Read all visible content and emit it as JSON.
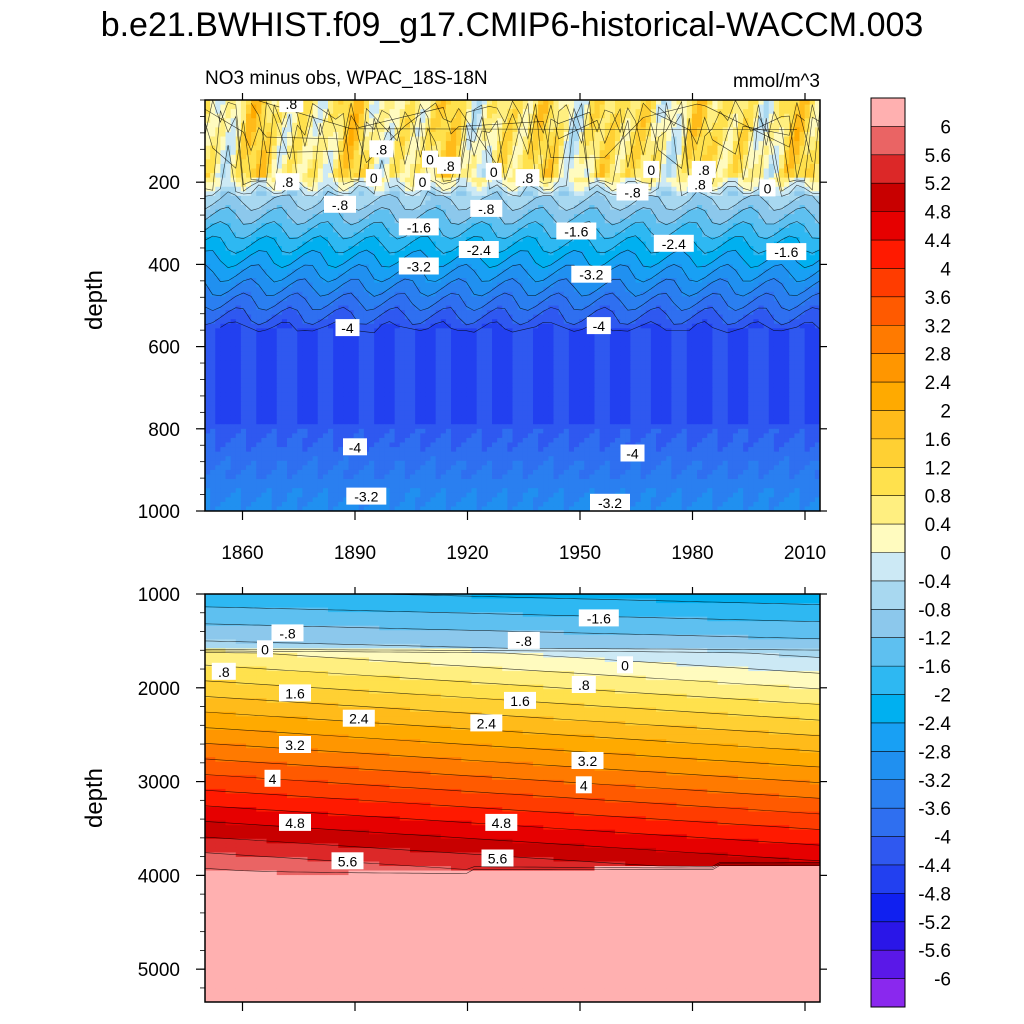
{
  "title": "b.e21.BWHIST.f09_g17.CMIP6-historical-WACCM.003",
  "chart_data": [
    {
      "type": "heatmap",
      "panel": "upper",
      "subtitle_left": "NO3 minus obs, WPAC_18S-18N",
      "subtitle_right": "mmol/m^3",
      "xlabel": "",
      "ylabel": "depth",
      "xlim": [
        1850,
        2014
      ],
      "ylim": [
        1000,
        0
      ],
      "x_ticks": [
        1860,
        1890,
        1920,
        1950,
        1980,
        2010
      ],
      "x_tick_labels": [
        "1860",
        "1890",
        "1920",
        "1950",
        "1980",
        "2010"
      ],
      "y_ticks": [
        200,
        400,
        600,
        800,
        1000
      ],
      "y_tick_labels": [
        "200",
        "400",
        "600",
        "800",
        "1000"
      ],
      "contour_labels": [
        {
          "text": ".8",
          "x": 1873,
          "y": 10
        },
        {
          "text": ".8",
          "x": 1897,
          "y": 120
        },
        {
          "text": ".8",
          "x": 1872,
          "y": 200
        },
        {
          "text": "0",
          "x": 1895,
          "y": 190
        },
        {
          "text": "0",
          "x": 1908,
          "y": 200
        },
        {
          "text": "0",
          "x": 1910,
          "y": 145
        },
        {
          "text": ".8",
          "x": 1915,
          "y": 160
        },
        {
          "text": "0",
          "x": 1927,
          "y": 175
        },
        {
          "text": ".8",
          "x": 1936,
          "y": 190
        },
        {
          "text": "-.8",
          "x": 1925,
          "y": 265
        },
        {
          "text": "-.8",
          "x": 1964,
          "y": 225
        },
        {
          "text": "0",
          "x": 1969,
          "y": 170
        },
        {
          "text": ".8",
          "x": 1983,
          "y": 170
        },
        {
          "text": ".8",
          "x": 1982,
          "y": 205
        },
        {
          "text": "0",
          "x": 2000,
          "y": 215
        },
        {
          "text": "-.8",
          "x": 1886,
          "y": 255
        },
        {
          "text": "-1.6",
          "x": 1907,
          "y": 310
        },
        {
          "text": "-1.6",
          "x": 1949,
          "y": 320
        },
        {
          "text": "-1.6",
          "x": 2005,
          "y": 370
        },
        {
          "text": "-2.4",
          "x": 1923,
          "y": 365
        },
        {
          "text": "-2.4",
          "x": 1975,
          "y": 350
        },
        {
          "text": "-3.2",
          "x": 1907,
          "y": 405
        },
        {
          "text": "-3.2",
          "x": 1953,
          "y": 425
        },
        {
          "text": "-4",
          "x": 1888,
          "y": 555
        },
        {
          "text": "-4",
          "x": 1955,
          "y": 550
        },
        {
          "text": "-4",
          "x": 1890,
          "y": 845
        },
        {
          "text": "-4",
          "x": 1964,
          "y": 860
        },
        {
          "text": "-3.2",
          "x": 1893,
          "y": 965
        },
        {
          "text": "-3.2",
          "x": 1958,
          "y": 980
        }
      ]
    },
    {
      "type": "heatmap",
      "panel": "lower",
      "xlabel": "",
      "ylabel": "depth",
      "xlim": [
        1850,
        2014
      ],
      "ylim": [
        5350,
        1000
      ],
      "x_ticks": [
        1860,
        1890,
        1920,
        1950,
        1980,
        2010
      ],
      "y_ticks": [
        1000,
        2000,
        3000,
        4000,
        5000
      ],
      "y_tick_labels": [
        "1000",
        "2000",
        "3000",
        "4000",
        "5000"
      ],
      "contour_labels": [
        {
          "text": "-.8",
          "x": 1872,
          "y": 1420
        },
        {
          "text": "0",
          "x": 1866,
          "y": 1590
        },
        {
          "text": ".8",
          "x": 1855,
          "y": 1830
        },
        {
          "text": "-.8",
          "x": 1935,
          "y": 1500
        },
        {
          "text": "-1.6",
          "x": 1955,
          "y": 1260
        },
        {
          "text": "0",
          "x": 1962,
          "y": 1760
        },
        {
          "text": ".8",
          "x": 1951,
          "y": 1970
        },
        {
          "text": "1.6",
          "x": 1874,
          "y": 2060
        },
        {
          "text": "1.6",
          "x": 1934,
          "y": 2140
        },
        {
          "text": "2.4",
          "x": 1891,
          "y": 2330
        },
        {
          "text": "2.4",
          "x": 1925,
          "y": 2380
        },
        {
          "text": "3.2",
          "x": 1874,
          "y": 2610
        },
        {
          "text": "3.2",
          "x": 1952,
          "y": 2780
        },
        {
          "text": "4",
          "x": 1868,
          "y": 2970
        },
        {
          "text": "4",
          "x": 1951,
          "y": 3040
        },
        {
          "text": "4.8",
          "x": 1874,
          "y": 3440
        },
        {
          "text": "4.8",
          "x": 1929,
          "y": 3440
        },
        {
          "text": "5.6",
          "x": 1888,
          "y": 3850
        },
        {
          "text": "5.6",
          "x": 1928,
          "y": 3820
        }
      ]
    }
  ],
  "colorbar": {
    "labels": [
      "6",
      "5.6",
      "5.2",
      "4.8",
      "4.4",
      "4",
      "3.6",
      "3.2",
      "2.8",
      "2.4",
      "2",
      "1.6",
      "1.2",
      "0.8",
      "0.4",
      "0",
      "-0.4",
      "-0.8",
      "-1.2",
      "-1.6",
      "-2",
      "-2.4",
      "-2.8",
      "-3.2",
      "-3.6",
      "-4",
      "-4.4",
      "-4.8",
      "-5.2",
      "-5.6",
      "-6"
    ],
    "colors": [
      "#ffb0b0",
      "#ea6464",
      "#dc2828",
      "#c80000",
      "#e60000",
      "#ff1a00",
      "#ff3c00",
      "#ff5a00",
      "#ff7a00",
      "#ff9600",
      "#ffaa00",
      "#ffbb1a",
      "#ffd033",
      "#ffe14d",
      "#ffef80",
      "#fffbbf",
      "#cce9f5",
      "#a8d8f0",
      "#8cc8ec",
      "#5ec0f0",
      "#2eb8f2",
      "#00b0f0",
      "#18a0f4",
      "#2090f0",
      "#2a7ff0",
      "#2f6ff0",
      "#2f58f0",
      "#2240f0",
      "#1020f0",
      "#2a16e8",
      "#5a18e8",
      "#8a28ee"
    ]
  }
}
